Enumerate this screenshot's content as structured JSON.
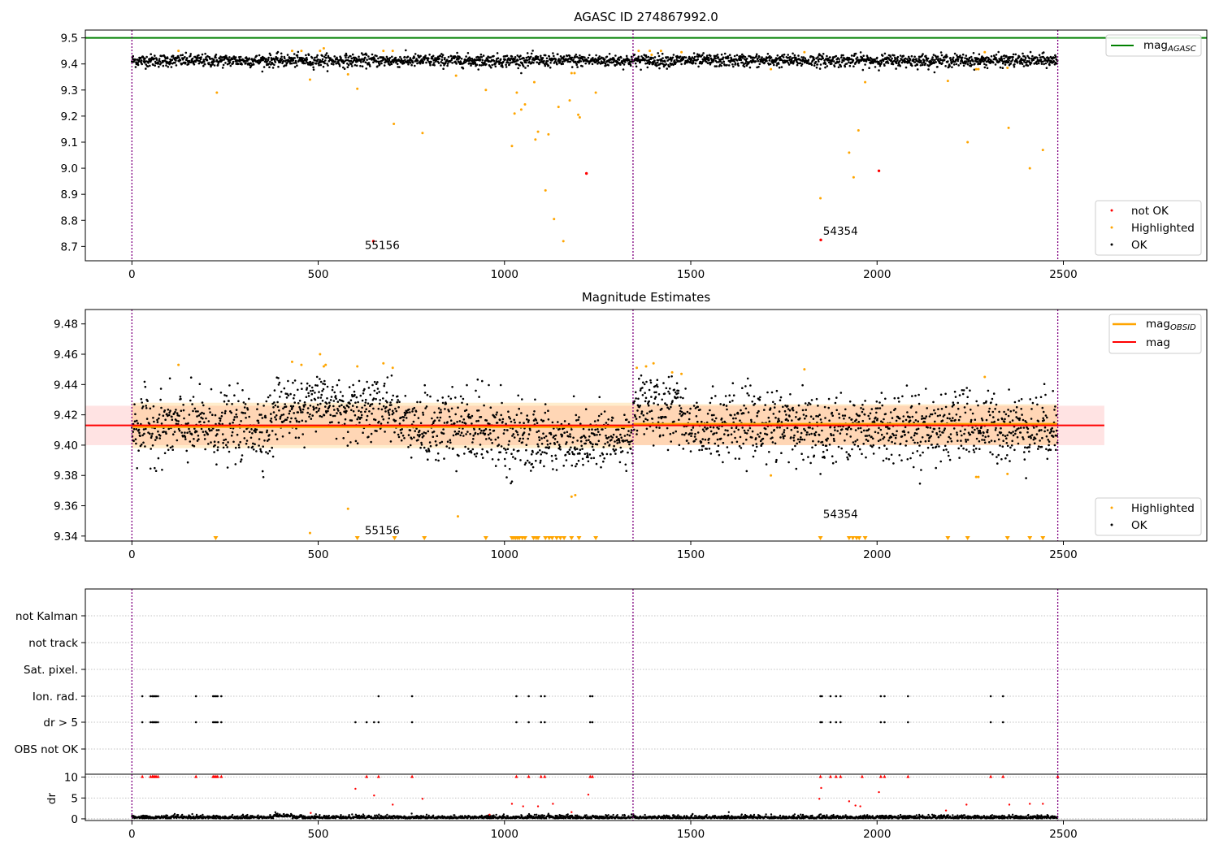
{
  "chart_data": [
    {
      "type": "scatter",
      "title": "AGASC ID 274867992.0",
      "xlim": [
        -125,
        2885
      ],
      "ylim": [
        8.645,
        9.53
      ],
      "xticks": [
        0,
        500,
        1000,
        1500,
        2000,
        2500
      ],
      "yticks": [
        8.7,
        8.8,
        8.9,
        9.0,
        9.1,
        9.2,
        9.3,
        9.4,
        9.5
      ],
      "xtick_labels": [
        "0",
        "500",
        "1000",
        "1500",
        "2000",
        "2500"
      ],
      "ytick_labels": [
        "8.7",
        "8.8",
        "8.9",
        "9.0",
        "9.1",
        "9.2",
        "9.3",
        "9.4",
        "9.5"
      ],
      "obsid_boundaries": [
        0,
        1345,
        2485
      ],
      "mag_agasc": 9.5,
      "ok_band": {
        "segments": [
          [
            0,
            1345,
            9.415,
            9.012
          ],
          [
            1345,
            2485,
            9.418,
            9.012
          ]
        ]
      },
      "legend_top": {
        "label": "mag",
        "sub": "AGASC"
      },
      "legend_bottom": [
        "not OK",
        "Highlighted",
        "OK"
      ],
      "annotations": [
        {
          "text": "55156",
          "x": 625,
          "y": 8.69
        },
        {
          "text": "54354",
          "x": 1855,
          "y": 8.745
        }
      ],
      "not_ok_points": [
        [
          648,
          8.72
        ],
        [
          1220,
          8.98
        ],
        [
          1849,
          8.725
        ],
        [
          2005,
          8.99
        ]
      ],
      "highlighted_points": [
        [
          125,
          9.45
        ],
        [
          228,
          9.29
        ],
        [
          430,
          9.45
        ],
        [
          455,
          9.45
        ],
        [
          478,
          9.34
        ],
        [
          505,
          9.45
        ],
        [
          515,
          9.46
        ],
        [
          580,
          9.36
        ],
        [
          605,
          9.305
        ],
        [
          675,
          9.45
        ],
        [
          700,
          9.45
        ],
        [
          703,
          9.17
        ],
        [
          780,
          9.135
        ],
        [
          870,
          9.355
        ],
        [
          950,
          9.3
        ],
        [
          1020,
          9.085
        ],
        [
          1027,
          9.21
        ],
        [
          1033,
          9.29
        ],
        [
          1045,
          9.225
        ],
        [
          1055,
          9.245
        ],
        [
          1080,
          9.33
        ],
        [
          1083,
          9.11
        ],
        [
          1090,
          9.14
        ],
        [
          1110,
          8.915
        ],
        [
          1118,
          9.13
        ],
        [
          1133,
          8.805
        ],
        [
          1145,
          9.235
        ],
        [
          1158,
          8.72
        ],
        [
          1175,
          9.26
        ],
        [
          1180,
          9.365
        ],
        [
          1188,
          9.365
        ],
        [
          1198,
          9.205
        ],
        [
          1202,
          9.195
        ],
        [
          1245,
          9.29
        ],
        [
          1360,
          9.45
        ],
        [
          1390,
          9.45
        ],
        [
          1395,
          9.435
        ],
        [
          1420,
          9.45
        ],
        [
          1475,
          9.445
        ],
        [
          1715,
          9.38
        ],
        [
          1805,
          9.445
        ],
        [
          1848,
          8.885
        ],
        [
          1925,
          9.06
        ],
        [
          1937,
          8.965
        ],
        [
          1950,
          9.145
        ],
        [
          1968,
          9.33
        ],
        [
          2190,
          9.335
        ],
        [
          2243,
          9.1
        ],
        [
          2266,
          9.38
        ],
        [
          2272,
          9.38
        ],
        [
          2289,
          9.445
        ],
        [
          2350,
          9.385
        ],
        [
          2353,
          9.155
        ],
        [
          2410,
          9.0
        ],
        [
          2445,
          9.07
        ]
      ]
    },
    {
      "type": "scatter",
      "title": "Magnitude Estimates",
      "xlim": [
        -125,
        2885
      ],
      "ylim": [
        9.3367,
        9.4895
      ],
      "xticks": [
        0,
        500,
        1000,
        1500,
        2000,
        2500
      ],
      "yticks": [
        9.34,
        9.36,
        9.38,
        9.4,
        9.42,
        9.44,
        9.46,
        9.48
      ],
      "xtick_labels": [
        "0",
        "500",
        "1000",
        "1500",
        "2000",
        "2500"
      ],
      "ytick_labels": [
        "9.34",
        "9.36",
        "9.38",
        "9.40",
        "9.42",
        "9.44",
        "9.46",
        "9.48"
      ],
      "obsid_boundaries": [
        0,
        1345,
        2485
      ],
      "mag": 9.413,
      "mag_band": [
        9.4,
        9.426
      ],
      "mag_extent": [
        -125,
        2610
      ],
      "mag_obsid": [
        {
          "x": [
            0,
            1345
          ],
          "mag": 9.412,
          "band": [
            9.398,
            9.428
          ]
        },
        {
          "x": [
            1345,
            2485
          ],
          "mag": 9.414,
          "band": [
            9.4,
            9.427
          ]
        }
      ],
      "legend_top": [
        {
          "label": "mag",
          "sub": "OBSID"
        },
        {
          "label": "mag"
        }
      ],
      "legend_bottom": [
        "Highlighted",
        "OK"
      ],
      "annotations": [
        {
          "text": "55156",
          "x": 625,
          "y": 9.3412
        },
        {
          "text": "54354",
          "x": 1855,
          "y": 9.3521
        }
      ],
      "highlighted_points": [
        [
          125,
          9.453
        ],
        [
          430,
          9.455
        ],
        [
          455,
          9.453
        ],
        [
          505,
          9.46
        ],
        [
          515,
          9.452
        ],
        [
          520,
          9.453
        ],
        [
          580,
          9.358
        ],
        [
          605,
          9.452
        ],
        [
          675,
          9.454
        ],
        [
          700,
          9.451
        ],
        [
          875,
          9.353
        ],
        [
          1180,
          9.366
        ],
        [
          1190,
          9.367
        ],
        [
          1355,
          9.451
        ],
        [
          1380,
          9.452
        ],
        [
          1400,
          9.454
        ],
        [
          1450,
          9.448
        ],
        [
          1475,
          9.447
        ],
        [
          1715,
          9.38
        ],
        [
          1805,
          9.45
        ],
        [
          2266,
          9.379
        ],
        [
          2272,
          9.379
        ],
        [
          2289,
          9.445
        ],
        [
          2350,
          9.381
        ],
        [
          478,
          9.342
        ]
      ],
      "below_axis_markers": [
        225,
        605,
        705,
        785,
        950,
        1020,
        1025,
        1030,
        1035,
        1040,
        1048,
        1055,
        1078,
        1085,
        1090,
        1110,
        1120,
        1128,
        1140,
        1150,
        1160,
        1180,
        1200,
        1245,
        1848,
        1925,
        1935,
        1945,
        1952,
        1968,
        2190,
        2243,
        2350,
        2410,
        2445
      ]
    },
    {
      "type": "scatter",
      "title": "",
      "xlim": [
        -125,
        2885
      ],
      "xticks": [
        0,
        500,
        1000,
        1500,
        2000,
        2500
      ],
      "xtick_labels": [
        "0",
        "500",
        "1000",
        "1500",
        "2000",
        "2500"
      ],
      "obsid_boundaries": [
        0,
        1345,
        2485
      ],
      "flag_rows": [
        "not Kalman",
        "not track",
        "Sat. pixel.",
        "Ion. rad.",
        "dr > 5",
        "OBS not OK"
      ],
      "ion_rad_x": [
        28,
        50,
        55,
        58,
        62,
        65,
        70,
        172,
        218,
        222,
        226,
        230,
        240,
        662,
        752,
        1032,
        1065,
        1098,
        1108,
        1230,
        1236,
        1848,
        1852,
        1875,
        1890,
        1902,
        2010,
        2020,
        2083,
        2305,
        2338
      ],
      "dr5_x": [
        28,
        50,
        55,
        58,
        62,
        65,
        70,
        172,
        218,
        222,
        226,
        230,
        240,
        600,
        630,
        650,
        662,
        752,
        1032,
        1065,
        1098,
        1108,
        1230,
        1236,
        1848,
        1852,
        1875,
        1890,
        1902,
        2010,
        2020,
        2083,
        2305,
        2338
      ],
      "dr_ylim": [
        -0.4,
        10.7
      ],
      "dr_yticks": [
        0,
        5,
        10
      ],
      "dr_ytick_labels": [
        "0",
        "5",
        "10"
      ],
      "ylabel": "dr",
      "dr_high_x": [
        28,
        50,
        55,
        58,
        62,
        65,
        70,
        172,
        218,
        222,
        226,
        230,
        240,
        630,
        662,
        752,
        1032,
        1065,
        1098,
        1108,
        1230,
        1236,
        1848,
        1875,
        1890,
        1902,
        1960,
        2010,
        2020,
        2083,
        2305,
        2338,
        2485
      ],
      "dr_mid_points": [
        [
          600,
          7.2
        ],
        [
          650,
          5.6
        ],
        [
          700,
          3.4
        ],
        [
          780,
          4.8
        ],
        [
          1020,
          3.6
        ],
        [
          1050,
          3.0
        ],
        [
          1090,
          3.0
        ],
        [
          1130,
          3.6
        ],
        [
          1225,
          5.8
        ],
        [
          1850,
          7.4
        ],
        [
          1845,
          4.8
        ],
        [
          1925,
          4.2
        ],
        [
          1942,
          3.2
        ],
        [
          1955,
          3.0
        ],
        [
          2005,
          6.4
        ],
        [
          2240,
          3.4
        ],
        [
          2355,
          3.4
        ],
        [
          2410,
          3.6
        ],
        [
          2445,
          3.6
        ],
        [
          2185,
          2.0
        ],
        [
          1180,
          1.6
        ],
        [
          480,
          1.4
        ],
        [
          960,
          1.0
        ]
      ]
    }
  ]
}
